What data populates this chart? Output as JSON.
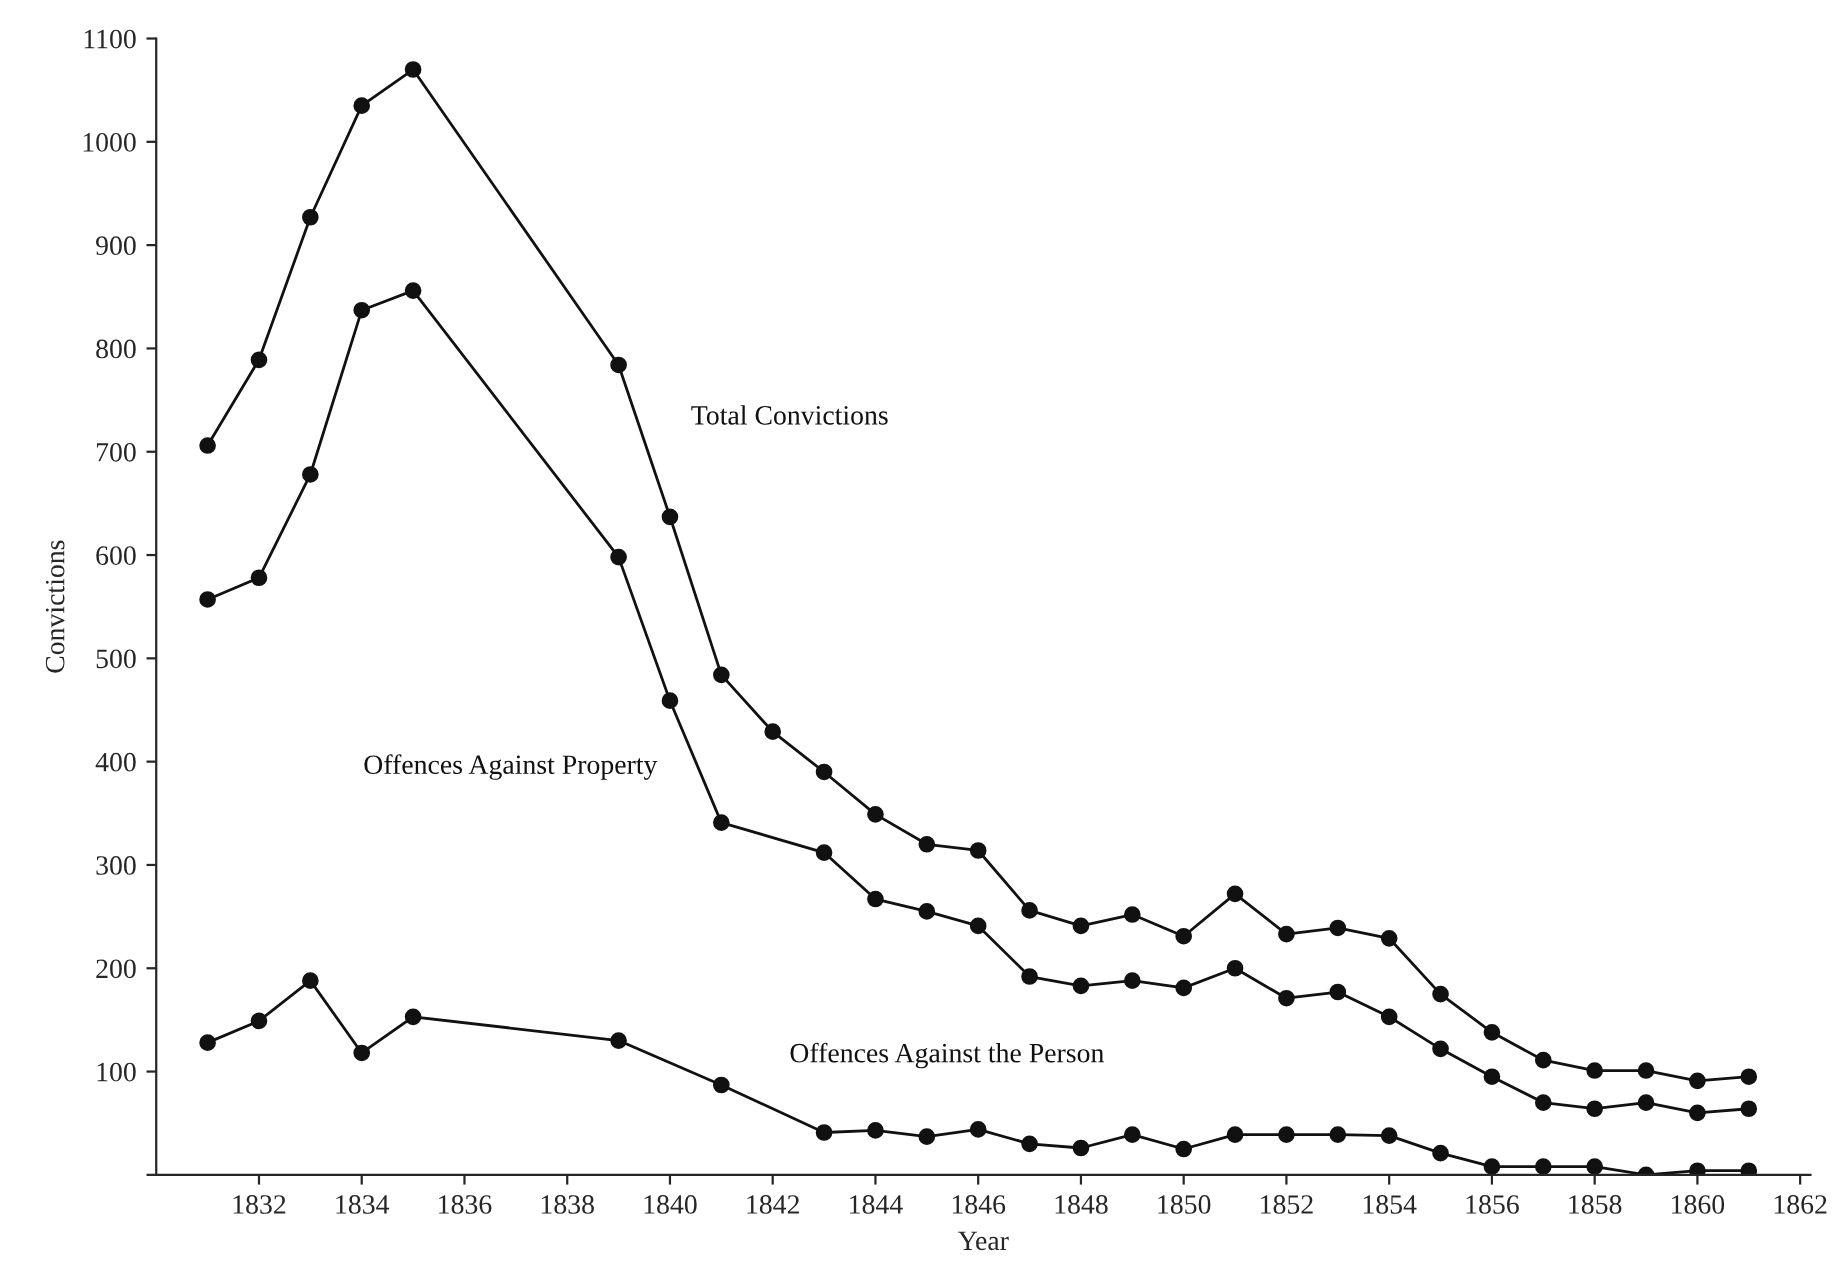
{
  "chart_data": {
    "type": "line",
    "xlabel": "Year",
    "ylabel": "Convictions",
    "x": [
      1831,
      1832,
      1833,
      1834,
      1835,
      1839,
      1840,
      1841,
      1842,
      1843,
      1844,
      1845,
      1846,
      1847,
      1848,
      1849,
      1850,
      1851,
      1852,
      1853,
      1854,
      1855,
      1856,
      1857,
      1858,
      1859,
      1860,
      1861
    ],
    "series": [
      {
        "name": "Total Convictions",
        "color": "#111111",
        "values": [
          706,
          789,
          927,
          1035,
          1070,
          784,
          637,
          484,
          429,
          390,
          349,
          320,
          314,
          256,
          241,
          252,
          231,
          272,
          233,
          239,
          229,
          175,
          138,
          111,
          101,
          101,
          91,
          95
        ]
      },
      {
        "name": "Offences Against Property",
        "color": "#111111",
        "values": [
          557,
          578,
          678,
          837,
          856,
          598,
          459,
          341,
          null,
          312,
          267,
          255,
          241,
          192,
          183,
          188,
          181,
          200,
          171,
          177,
          153,
          122,
          95,
          70,
          64,
          70,
          60,
          64
        ]
      },
      {
        "name": "Offences Against the Person",
        "color": "#111111",
        "values": [
          128,
          149,
          188,
          118,
          153,
          130,
          null,
          87,
          null,
          41,
          43,
          37,
          44,
          30,
          26,
          39,
          25,
          39,
          39,
          39,
          38,
          21,
          8,
          8,
          8,
          0,
          4,
          4
        ]
      }
    ],
    "xlim": [
      1830,
      1862.2
    ],
    "xticks": [
      1832,
      1834,
      1836,
      1838,
      1840,
      1842,
      1844,
      1846,
      1848,
      1850,
      1852,
      1854,
      1856,
      1858,
      1860,
      1862
    ],
    "ylim": [
      0,
      1100
    ],
    "yticks": [
      {
        "value": 0,
        "label": null
      },
      100,
      200,
      300,
      400,
      500,
      600,
      700,
      800,
      900,
      1000,
      1100
    ],
    "marker": "circle",
    "line_style": "solid",
    "grid": false,
    "legend": false
  }
}
